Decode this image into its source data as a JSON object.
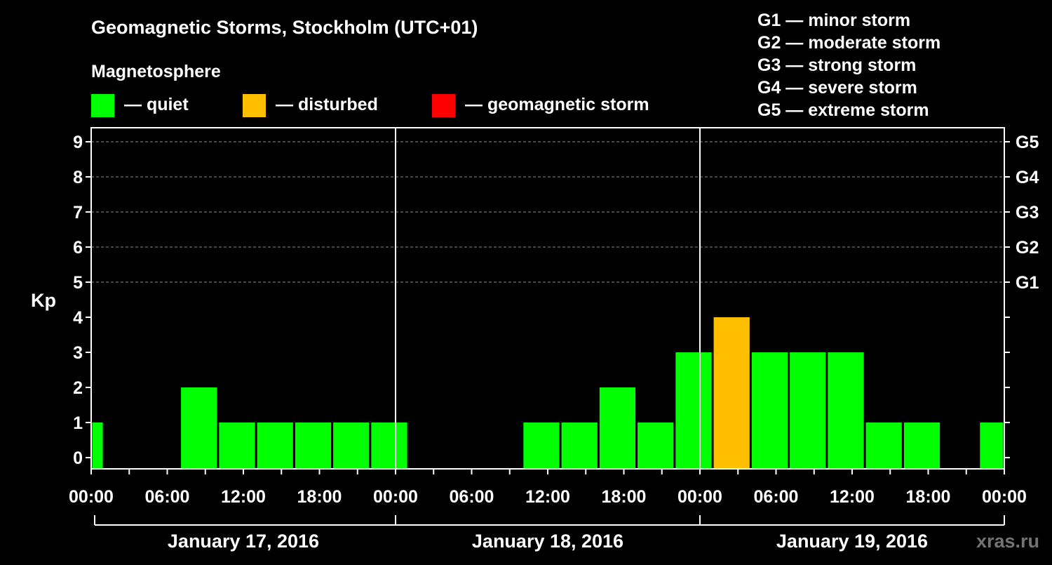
{
  "title": "Geomagnetic Storms, Stockholm (UTC+01)",
  "legend": {
    "heading": "Magnetosphere",
    "items": [
      {
        "label": "— quiet",
        "color": "#00ff00"
      },
      {
        "label": "— disturbed",
        "color": "#ffbf00"
      },
      {
        "label": "— geomagnetic storm",
        "color": "#ff0000"
      }
    ]
  },
  "storm_scale": [
    "G1 — minor storm",
    "G2 — moderate storm",
    "G3 — strong storm",
    "G4 — severe storm",
    "G5 — extreme storm"
  ],
  "watermark": "xras.ru",
  "colors": {
    "quiet": "#00ff00",
    "disturbed": "#ffbf00",
    "storm": "#ff0000",
    "background": "#000000",
    "axis": "#ffffff"
  },
  "chart_data": {
    "type": "bar",
    "ylabel": "Kp",
    "ylim": [
      0,
      9
    ],
    "yticks": [
      0,
      1,
      2,
      3,
      4,
      5,
      6,
      7,
      8,
      9
    ],
    "right_ticks": [
      {
        "kp": 5,
        "label": "G1"
      },
      {
        "kp": 6,
        "label": "G2"
      },
      {
        "kp": 7,
        "label": "G3"
      },
      {
        "kp": 8,
        "label": "G4"
      },
      {
        "kp": 9,
        "label": "G5"
      }
    ],
    "x_tick_labels": [
      "00:00",
      "06:00",
      "12:00",
      "18:00",
      "00:00",
      "06:00",
      "12:00",
      "18:00",
      "00:00",
      "06:00",
      "12:00",
      "18:00",
      "00:00"
    ],
    "days": [
      "January 17, 2016",
      "January 18, 2016",
      "January 19, 2016"
    ],
    "grid": "dashed horizontal at Kp 5-9",
    "bars": [
      {
        "start": "2016-01-17 00:00",
        "end": "2016-01-17 01:00",
        "kp": 1,
        "status": "quiet"
      },
      {
        "start": "2016-01-17 07:00",
        "end": "2016-01-17 10:00",
        "kp": 2,
        "status": "quiet"
      },
      {
        "start": "2016-01-17 10:00",
        "end": "2016-01-17 13:00",
        "kp": 1,
        "status": "quiet"
      },
      {
        "start": "2016-01-17 13:00",
        "end": "2016-01-17 16:00",
        "kp": 1,
        "status": "quiet"
      },
      {
        "start": "2016-01-17 16:00",
        "end": "2016-01-17 19:00",
        "kp": 1,
        "status": "quiet"
      },
      {
        "start": "2016-01-17 19:00",
        "end": "2016-01-17 22:00",
        "kp": 1,
        "status": "quiet"
      },
      {
        "start": "2016-01-17 22:00",
        "end": "2016-01-18 01:00",
        "kp": 1,
        "status": "quiet"
      },
      {
        "start": "2016-01-18 10:00",
        "end": "2016-01-18 13:00",
        "kp": 1,
        "status": "quiet"
      },
      {
        "start": "2016-01-18 13:00",
        "end": "2016-01-18 16:00",
        "kp": 1,
        "status": "quiet"
      },
      {
        "start": "2016-01-18 16:00",
        "end": "2016-01-18 19:00",
        "kp": 2,
        "status": "quiet"
      },
      {
        "start": "2016-01-18 19:00",
        "end": "2016-01-18 22:00",
        "kp": 1,
        "status": "quiet"
      },
      {
        "start": "2016-01-18 22:00",
        "end": "2016-01-19 01:00",
        "kp": 3,
        "status": "quiet"
      },
      {
        "start": "2016-01-19 01:00",
        "end": "2016-01-19 04:00",
        "kp": 4,
        "status": "disturbed"
      },
      {
        "start": "2016-01-19 04:00",
        "end": "2016-01-19 07:00",
        "kp": 3,
        "status": "quiet"
      },
      {
        "start": "2016-01-19 07:00",
        "end": "2016-01-19 10:00",
        "kp": 3,
        "status": "quiet"
      },
      {
        "start": "2016-01-19 10:00",
        "end": "2016-01-19 13:00",
        "kp": 3,
        "status": "quiet"
      },
      {
        "start": "2016-01-19 13:00",
        "end": "2016-01-19 16:00",
        "kp": 1,
        "status": "quiet"
      },
      {
        "start": "2016-01-19 16:00",
        "end": "2016-01-19 19:00",
        "kp": 1,
        "status": "quiet"
      },
      {
        "start": "2016-01-19 22:00",
        "end": "2016-01-20 00:00",
        "kp": 1,
        "status": "quiet"
      }
    ]
  }
}
